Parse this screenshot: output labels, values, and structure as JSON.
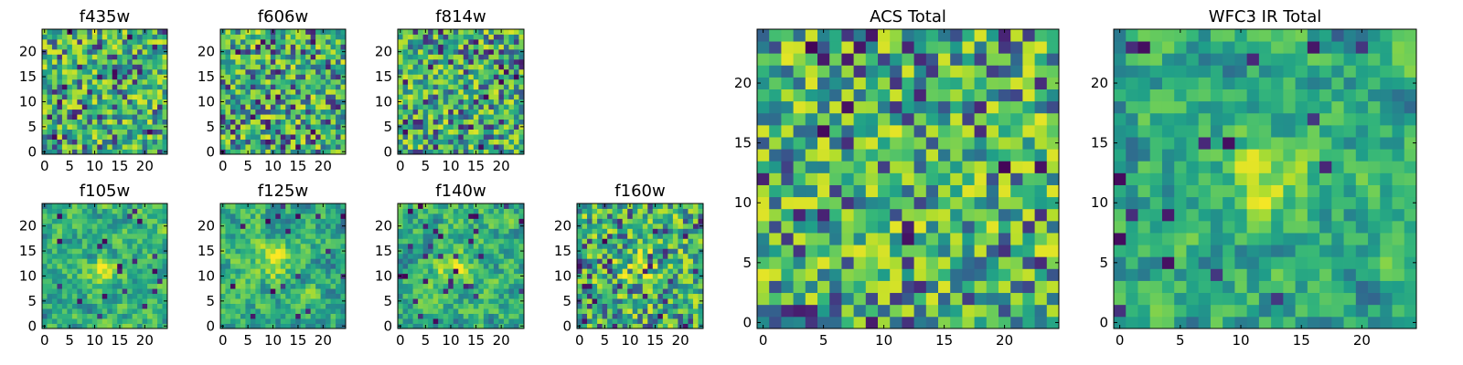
{
  "chart_data": [
    {
      "type": "heatmap",
      "title": "f435w",
      "colormap": "viridis",
      "grid": false,
      "xlim": [
        0,
        24
      ],
      "ylim": [
        0,
        24
      ],
      "xticks": [
        0,
        5,
        10,
        15,
        20
      ],
      "yticks": [
        0,
        5,
        10,
        15,
        20
      ],
      "shape": [
        25,
        25
      ],
      "seed": 11,
      "smooth": 0,
      "mean": 0.72
    },
    {
      "type": "heatmap",
      "title": "f606w",
      "colormap": "viridis",
      "grid": false,
      "xlim": [
        0,
        24
      ],
      "ylim": [
        0,
        24
      ],
      "xticks": [
        0,
        5,
        10,
        15,
        20
      ],
      "yticks": [
        0,
        5,
        10,
        15,
        20
      ],
      "shape": [
        25,
        25
      ],
      "seed": 23,
      "smooth": 0,
      "mean": 0.72
    },
    {
      "type": "heatmap",
      "title": "f814w",
      "colormap": "viridis",
      "grid": false,
      "xlim": [
        0,
        24
      ],
      "ylim": [
        0,
        24
      ],
      "xticks": [
        0,
        5,
        10,
        15,
        20
      ],
      "yticks": [
        0,
        5,
        10,
        15,
        20
      ],
      "shape": [
        25,
        25
      ],
      "seed": 37,
      "smooth": 0,
      "mean": 0.7
    },
    {
      "type": "heatmap",
      "title": "f105w",
      "colormap": "viridis",
      "grid": false,
      "xlim": [
        0,
        24
      ],
      "ylim": [
        0,
        24
      ],
      "xticks": [
        0,
        5,
        10,
        15,
        20
      ],
      "yticks": [
        0,
        5,
        10,
        15,
        20
      ],
      "shape": [
        25,
        25
      ],
      "seed": 41,
      "smooth": 1,
      "mean": 0.66,
      "bright_center": [
        12,
        11
      ]
    },
    {
      "type": "heatmap",
      "title": "f125w",
      "colormap": "viridis",
      "grid": false,
      "xlim": [
        0,
        24
      ],
      "ylim": [
        0,
        24
      ],
      "xticks": [
        0,
        5,
        10,
        15,
        20
      ],
      "yticks": [
        0,
        5,
        10,
        15,
        20
      ],
      "shape": [
        25,
        25
      ],
      "seed": 53,
      "smooth": 1,
      "mean": 0.68,
      "bright_center": [
        10,
        13
      ]
    },
    {
      "type": "heatmap",
      "title": "f140w",
      "colormap": "viridis",
      "grid": false,
      "xlim": [
        0,
        24
      ],
      "ylim": [
        0,
        24
      ],
      "xticks": [
        0,
        5,
        10,
        15,
        20
      ],
      "yticks": [
        0,
        5,
        10,
        15,
        20
      ],
      "shape": [
        25,
        25
      ],
      "seed": 67,
      "smooth": 1,
      "mean": 0.7,
      "bright_center": [
        10,
        12
      ]
    },
    {
      "type": "heatmap",
      "title": "f160w",
      "colormap": "viridis",
      "grid": false,
      "xlim": [
        0,
        24
      ],
      "ylim": [
        0,
        24
      ],
      "xticks": [
        0,
        5,
        10,
        15,
        20
      ],
      "yticks": [
        0,
        5,
        10,
        15,
        20
      ],
      "shape": [
        25,
        25
      ],
      "seed": 79,
      "smooth": 0,
      "mean": 0.7,
      "bright_center": [
        12,
        12
      ]
    },
    {
      "type": "heatmap",
      "title": "ACS Total",
      "colormap": "viridis",
      "grid": false,
      "xlim": [
        0,
        24
      ],
      "ylim": [
        0,
        24
      ],
      "xticks": [
        0,
        5,
        10,
        15,
        20
      ],
      "yticks": [
        0,
        5,
        10,
        15,
        20
      ],
      "shape": [
        25,
        25
      ],
      "seed": 97,
      "smooth": 0,
      "mean": 0.74
    },
    {
      "type": "heatmap",
      "title": "WFC3 IR Total",
      "colormap": "viridis",
      "grid": false,
      "xlim": [
        0,
        24
      ],
      "ylim": [
        0,
        24
      ],
      "xticks": [
        0,
        5,
        10,
        15,
        20
      ],
      "yticks": [
        0,
        5,
        10,
        15,
        20
      ],
      "shape": [
        25,
        25
      ],
      "seed": 113,
      "smooth": 1,
      "mean": 0.6,
      "bright_center": [
        12,
        12
      ]
    }
  ]
}
